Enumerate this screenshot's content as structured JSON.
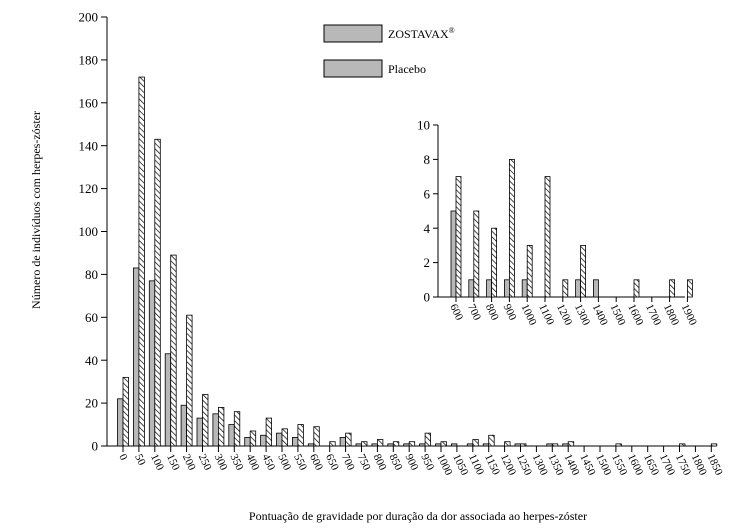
{
  "chart_data": [
    {
      "type": "bar",
      "xlabel": "Pontuação de gravidade por duração da dor associada ao herpes-zóster",
      "ylabel": "Número de indivíduos com herpes-zóster",
      "ylim": [
        0,
        200
      ],
      "yticks": [
        0,
        20,
        40,
        60,
        80,
        100,
        120,
        140,
        160,
        180,
        200
      ],
      "categories": [
        "0",
        "50",
        "100",
        "150",
        "200",
        "250",
        "300",
        "350",
        "400",
        "450",
        "500",
        "550",
        "600",
        "650",
        "700",
        "750",
        "800",
        "850",
        "900",
        "950",
        "1000",
        "1050",
        "1100",
        "1150",
        "1200",
        "1250",
        "1300",
        "1350",
        "1400",
        "1450",
        "1500",
        "1550",
        "1600",
        "1650",
        "1700",
        "1750",
        "1800",
        "1850"
      ],
      "series": [
        {
          "name": "ZOSTAVAX",
          "name_sup": "®",
          "pattern": "solid",
          "values": [
            22,
            83,
            77,
            43,
            19,
            13,
            15,
            10,
            4,
            5,
            6,
            4,
            1,
            0,
            4,
            1,
            1,
            1,
            1,
            1,
            1,
            1,
            1,
            1,
            0,
            1,
            0,
            1,
            1,
            0,
            0,
            0,
            0,
            0,
            0,
            0,
            0,
            0
          ]
        },
        {
          "name": "Placebo",
          "pattern": "hatched",
          "values": [
            32,
            172,
            143,
            89,
            61,
            24,
            18,
            16,
            7,
            13,
            8,
            10,
            9,
            2,
            6,
            2,
            3,
            2,
            2,
            6,
            2,
            0,
            3,
            5,
            2,
            1,
            0,
            1,
            2,
            0,
            0,
            1,
            0,
            0,
            0,
            1,
            0,
            1
          ]
        }
      ],
      "legend": "top-center"
    },
    {
      "type": "bar",
      "ylim": [
        0,
        10
      ],
      "yticks": [
        0,
        2,
        4,
        6,
        8,
        10
      ],
      "categories": [
        "600",
        "700",
        "800",
        "900",
        "1000",
        "1100",
        "1200",
        "1300",
        "1400",
        "1500",
        "1600",
        "1700",
        "1800",
        "1900"
      ],
      "series": [
        {
          "name": "ZOSTAVAX",
          "pattern": "solid",
          "values": [
            5,
            1,
            1,
            1,
            1,
            0,
            0,
            1,
            1,
            0,
            0,
            0,
            0,
            0
          ]
        },
        {
          "name": "Placebo",
          "pattern": "hatched",
          "values": [
            7,
            5,
            4,
            8,
            3,
            7,
            1,
            3,
            0,
            0,
            1,
            0,
            1,
            1
          ]
        }
      ]
    }
  ],
  "colors": {
    "solid_bar": "#b8b8b8",
    "hatch": "#000000",
    "background": "#ffffff"
  }
}
